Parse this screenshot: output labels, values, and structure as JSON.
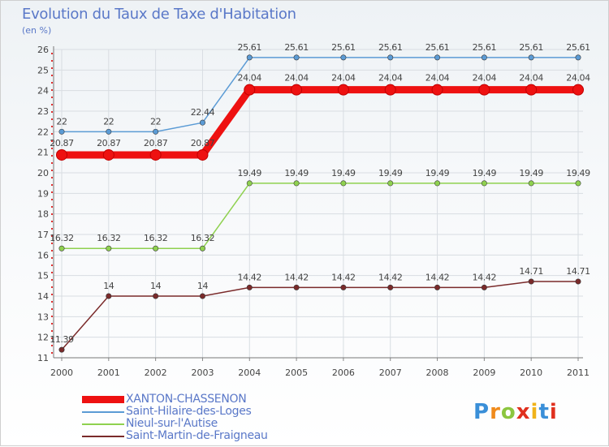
{
  "chart_data": {
    "type": "line",
    "title": "Evolution du Taux de Taxe d'Habitation",
    "ylabel": "(en %)",
    "xlabel": "",
    "ylim": [
      11,
      26
    ],
    "yticks": [
      "11",
      "12",
      "13",
      "14",
      "15",
      "16",
      "17",
      "18",
      "19",
      "20",
      "21",
      "22",
      "23",
      "24",
      "25",
      "26"
    ],
    "x": [
      "2000",
      "2001",
      "2002",
      "2003",
      "2004",
      "2005",
      "2006",
      "2007",
      "2008",
      "2009",
      "2010",
      "2011"
    ],
    "series": [
      {
        "name": "XANTON-CHASSENON",
        "color": "#ee1111",
        "emphasis": true,
        "values": [
          20.87,
          20.87,
          20.87,
          20.87,
          24.04,
          24.04,
          24.04,
          24.04,
          24.04,
          24.04,
          24.04,
          24.04
        ],
        "labels": [
          "20.87",
          "20.87",
          "20.87",
          "20.87",
          "24.04",
          "24.04",
          "24.04",
          "24.04",
          "24.04",
          "24.04",
          "24.04",
          "24.04"
        ]
      },
      {
        "name": "Saint-Hilaire-des-Loges",
        "color": "#5b9bd5",
        "emphasis": false,
        "values": [
          22,
          22,
          22,
          22.44,
          25.61,
          25.61,
          25.61,
          25.61,
          25.61,
          25.61,
          25.61,
          25.61
        ],
        "labels": [
          "22",
          "22",
          "22",
          "22.44",
          "25.61",
          "25.61",
          "25.61",
          "25.61",
          "25.61",
          "25.61",
          "25.61",
          "25.61"
        ]
      },
      {
        "name": "Nieul-sur-l'Autise",
        "color": "#8fd14f",
        "emphasis": false,
        "values": [
          16.32,
          16.32,
          16.32,
          16.32,
          19.49,
          19.49,
          19.49,
          19.49,
          19.49,
          19.49,
          19.49,
          19.49
        ],
        "labels": [
          "16.32",
          "16.32",
          "16.32",
          "16.32",
          "19.49",
          "19.49",
          "19.49",
          "19.49",
          "19.49",
          "19.49",
          "19.49",
          "19.49"
        ]
      },
      {
        "name": "Saint-Martin-de-Fraigneau",
        "color": "#7a2a2a",
        "emphasis": false,
        "values": [
          11.39,
          14,
          14,
          14,
          14.42,
          14.42,
          14.42,
          14.42,
          14.42,
          14.42,
          14.71,
          14.71
        ],
        "labels": [
          "11.39",
          "14",
          "14",
          "14",
          "14.42",
          "14.42",
          "14.42",
          "14.42",
          "14.42",
          "14.42",
          "14.71",
          "14.71"
        ]
      }
    ]
  },
  "brand": {
    "letters": [
      "P",
      "r",
      "o",
      "x",
      "i",
      "t",
      "i"
    ],
    "colors": [
      "#3a8fd8",
      "#f08a1a",
      "#8cc63f",
      "#e0301e",
      "#f0b31a",
      "#3a8fd8",
      "#e0301e"
    ]
  }
}
